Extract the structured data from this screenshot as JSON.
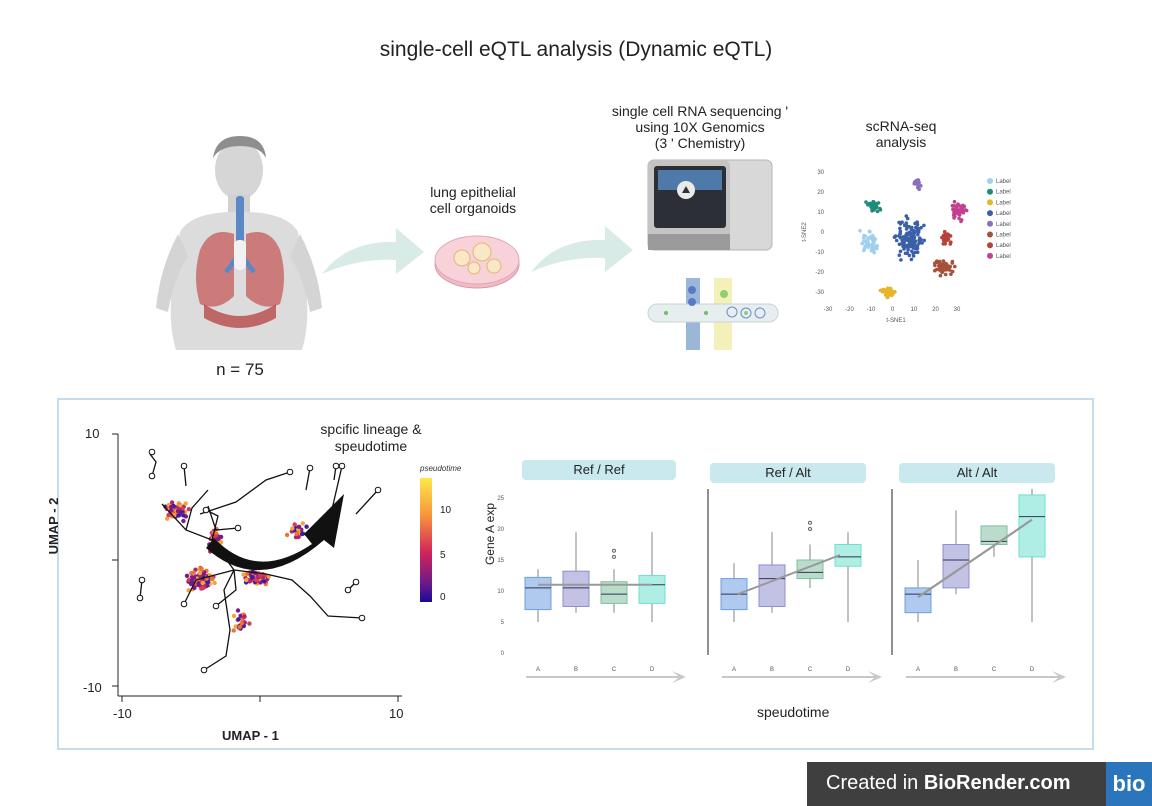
{
  "title": "single-cell eQTL analysis (Dynamic eQTL)",
  "cohort": {
    "n_label": "n = 75"
  },
  "steps": {
    "organoid": "lung epithelial\ncell organoids",
    "sequencing": "single cell RNA sequencing '\nusing 10X Genomics\n(3 ' Chemistry)",
    "analysis": "scRNA-seq\nanalysis"
  },
  "tsne": {
    "xlabel": "t-SNE1",
    "ylabel": "t-SNE2",
    "xticks": [
      "-30",
      "-20",
      "-10",
      "0",
      "10",
      "20",
      "30"
    ],
    "yticks": [
      "30",
      "20",
      "10",
      "0",
      "-10",
      "-20",
      "-30"
    ],
    "legend": [
      {
        "label": "Label",
        "color": "#9fd0ee"
      },
      {
        "label": "Label",
        "color": "#1f8a7a"
      },
      {
        "label": "Label",
        "color": "#e8b52a"
      },
      {
        "label": "Label",
        "color": "#3b5fa8"
      },
      {
        "label": "Label",
        "color": "#8b6fb8"
      },
      {
        "label": "Label",
        "color": "#a7503a"
      },
      {
        "label": "Label",
        "color": "#b8413a"
      },
      {
        "label": "Label",
        "color": "#c0418f"
      }
    ]
  },
  "umap": {
    "annotation": "spcific lineage &\nspeudotime",
    "xlabel": "UMAP - 1",
    "ylabel": "UMAP - 2",
    "xticks": [
      "-10",
      "10"
    ],
    "yticks": [
      "10",
      "-10"
    ],
    "colorbar_title": "pseudotime",
    "colorbar_ticks": [
      "10",
      "5",
      "0"
    ]
  },
  "boxplots": {
    "ylabel": "Gene A exp",
    "xlabel": "speudotime",
    "yticks": [
      "25",
      "20",
      "15",
      "10",
      "5",
      "0"
    ],
    "categories": [
      "A",
      "B",
      "C",
      "D"
    ],
    "colors": [
      "#6d9ee0",
      "#8f8fd0",
      "#7fbfa0",
      "#6ee0d0"
    ],
    "panels": [
      {
        "title": "Ref / Ref"
      },
      {
        "title": "Ref / Alt"
      },
      {
        "title": "Alt / Alt"
      }
    ]
  },
  "brand": {
    "created_in": "Created in ",
    "name": "BioRender.com",
    "logo": "bio"
  }
}
